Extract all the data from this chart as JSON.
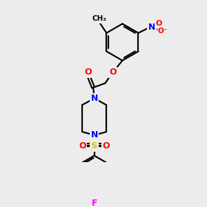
{
  "background_color": "#ececec",
  "bond_color": "#000000",
  "atom_colors": {
    "O": "#ff0000",
    "N": "#0000ff",
    "S": "#cccc00",
    "F": "#ff00ff",
    "C": "#000000"
  },
  "figsize": [
    3.0,
    3.0
  ],
  "dpi": 100
}
